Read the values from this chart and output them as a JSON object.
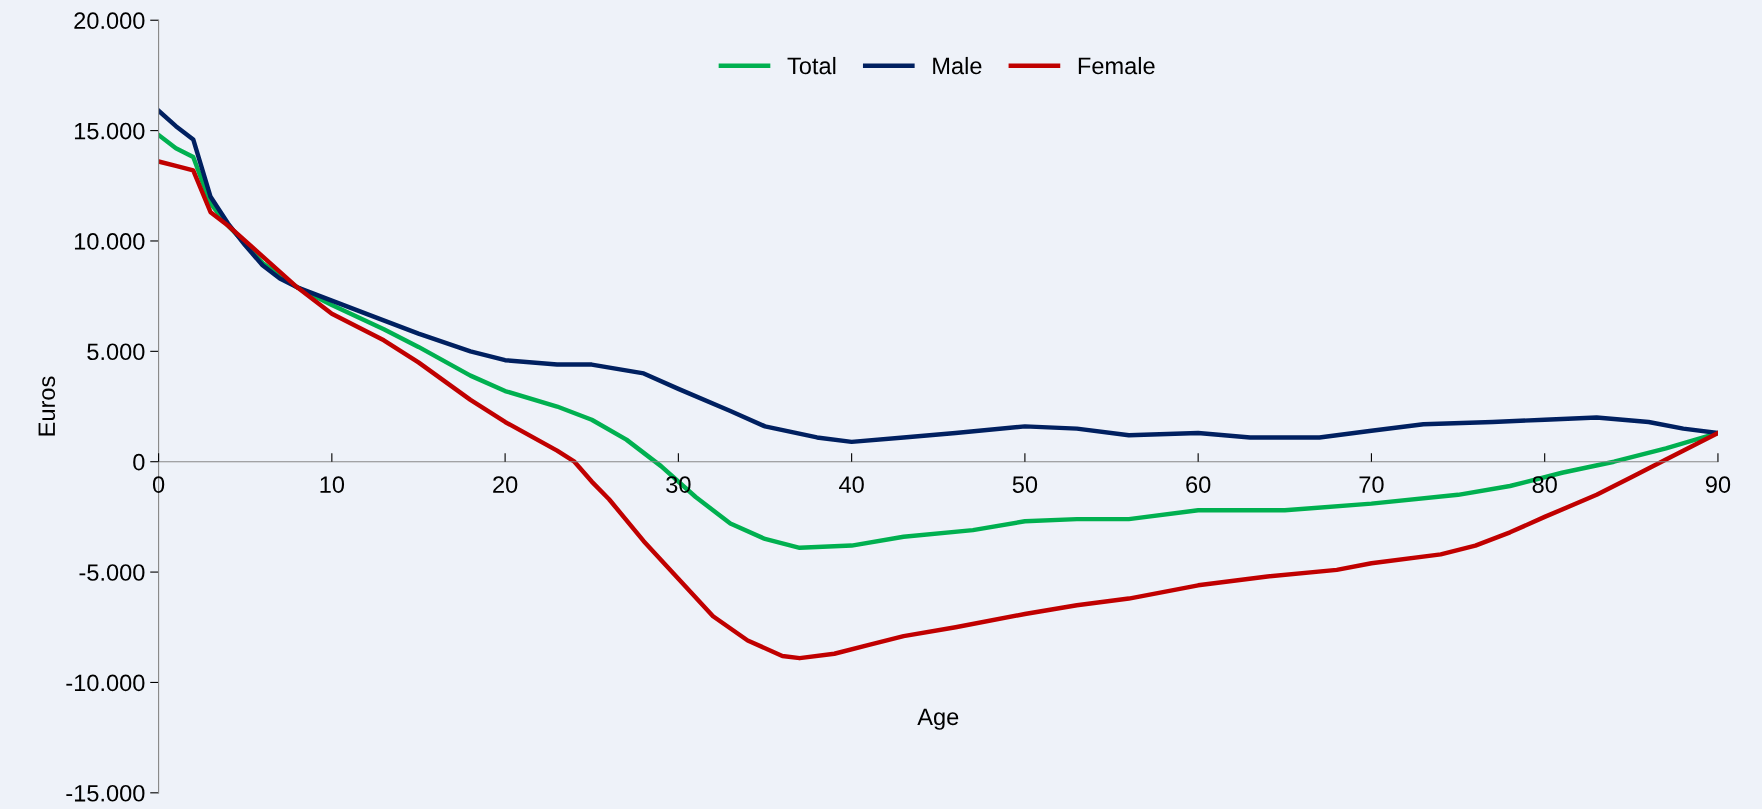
{
  "chart_data": {
    "type": "line",
    "xlabel": "Age",
    "ylabel": "Euros",
    "xlim": [
      0,
      90
    ],
    "xticks": [
      0,
      10,
      20,
      30,
      40,
      50,
      60,
      70,
      80,
      90
    ],
    "ylim": [
      -15000,
      20000
    ],
    "yticks": [
      {
        "value": -15000,
        "label": "-15.000"
      },
      {
        "value": -10000,
        "label": "-10.000"
      },
      {
        "value": -5000,
        "label": "-5.000"
      },
      {
        "value": 0,
        "label": "0"
      },
      {
        "value": 5000,
        "label": "5.000"
      },
      {
        "value": 10000,
        "label": "10.000"
      },
      {
        "value": 15000,
        "label": "15.000"
      },
      {
        "value": 20000,
        "label": "20.000"
      }
    ],
    "grid": false,
    "legend": "top",
    "marker": "none",
    "line_style": "solid",
    "series": [
      {
        "name": "Total",
        "color": "#00b050",
        "x": [
          0,
          1,
          2,
          3,
          4,
          5,
          6,
          8,
          10,
          13,
          15,
          18,
          20,
          23,
          25,
          27,
          29,
          31,
          33,
          35,
          37,
          40,
          43,
          47,
          50,
          53,
          56,
          60,
          65,
          70,
          75,
          78,
          81,
          84,
          87,
          90
        ],
        "values": [
          14800,
          14200,
          13800,
          11700,
          10700,
          9900,
          9000,
          7900,
          7100,
          6000,
          5200,
          3900,
          3200,
          2500,
          1900,
          1000,
          -200,
          -1600,
          -2800,
          -3500,
          -3900,
          -3800,
          -3400,
          -3100,
          -2700,
          -2600,
          -2600,
          -2200,
          -2200,
          -1900,
          -1500,
          -1100,
          -500,
          0,
          600,
          1300
        ]
      },
      {
        "name": "Male",
        "color": "#002060",
        "x": [
          0,
          1,
          2,
          3,
          4,
          5,
          6,
          7,
          8,
          10,
          12,
          15,
          18,
          20,
          23,
          25,
          28,
          30,
          33,
          35,
          38,
          40,
          43,
          46,
          50,
          53,
          56,
          60,
          63,
          67,
          70,
          73,
          77,
          80,
          83,
          86,
          88,
          90
        ],
        "values": [
          15900,
          15200,
          14600,
          12000,
          10800,
          9800,
          8900,
          8300,
          7900,
          7300,
          6700,
          5800,
          5000,
          4600,
          4400,
          4400,
          4000,
          3300,
          2300,
          1600,
          1100,
          900,
          1100,
          1300,
          1600,
          1500,
          1200,
          1300,
          1100,
          1100,
          1400,
          1700,
          1800,
          1900,
          2000,
          1800,
          1500,
          1300
        ]
      },
      {
        "name": "Female",
        "color": "#c00000",
        "x": [
          0,
          1,
          2,
          3,
          4,
          6,
          8,
          10,
          13,
          15,
          18,
          20,
          23,
          24,
          25,
          26,
          28,
          30,
          32,
          34,
          36,
          37,
          39,
          41,
          43,
          46,
          50,
          53,
          56,
          60,
          64,
          68,
          70,
          74,
          76,
          78,
          80,
          83,
          85,
          87,
          90
        ],
        "values": [
          13600,
          13400,
          13200,
          11300,
          10700,
          9300,
          7900,
          6700,
          5500,
          4500,
          2800,
          1800,
          500,
          0,
          -900,
          -1700,
          -3600,
          -5300,
          -7000,
          -8100,
          -8800,
          -8900,
          -8700,
          -8300,
          -7900,
          -7500,
          -6900,
          -6500,
          -6200,
          -5600,
          -5200,
          -4900,
          -4600,
          -4200,
          -3800,
          -3200,
          -2500,
          -1500,
          -700,
          100,
          1300
        ]
      }
    ]
  }
}
